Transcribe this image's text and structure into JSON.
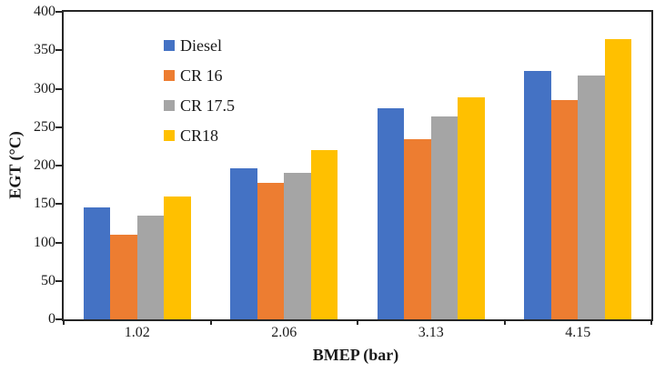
{
  "chart_data": {
    "type": "bar",
    "title": "",
    "xlabel": "BMEP (bar)",
    "ylabel": "EGT (°C)",
    "categories": [
      "1.02",
      "2.06",
      "3.13",
      "4.15"
    ],
    "series": [
      {
        "name": "Diesel",
        "color": "#4472C4",
        "values": [
          145,
          197,
          275,
          323
        ]
      },
      {
        "name": "CR 16",
        "color": "#ED7D31",
        "values": [
          110,
          178,
          234,
          285
        ]
      },
      {
        "name": "CR 17.5",
        "color": "#A5A5A5",
        "values": [
          135,
          190,
          264,
          317
        ]
      },
      {
        "name": "CR18",
        "color": "#FFC000",
        "values": [
          160,
          220,
          289,
          365
        ]
      }
    ],
    "ylim": [
      0,
      400
    ],
    "yticks": [
      0,
      50,
      100,
      150,
      200,
      250,
      300,
      350,
      400
    ],
    "grid": false,
    "legend_position": "top-left-inside",
    "axis_color": "#262626",
    "background_color": "#ffffff"
  }
}
